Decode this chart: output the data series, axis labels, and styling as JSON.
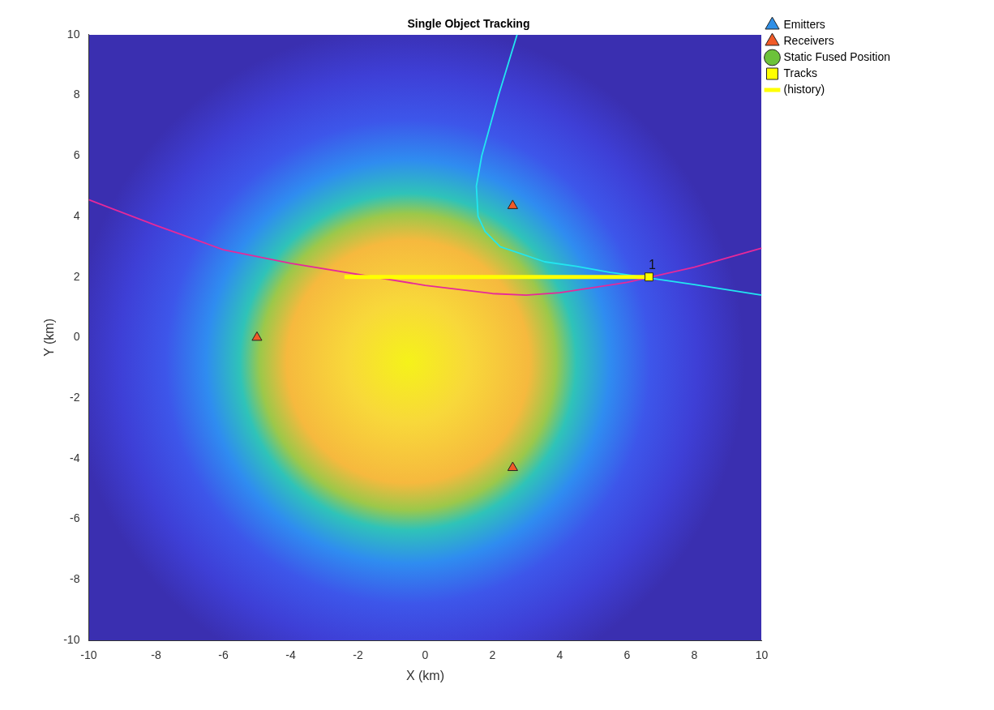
{
  "chart_data": {
    "type": "scatter",
    "title": "Single Object Tracking",
    "xlabel": "X (km)",
    "ylabel": "Y (km)",
    "xlim": [
      -10,
      10
    ],
    "ylim": [
      -10,
      10
    ],
    "xticks": [
      -10,
      -8,
      -6,
      -4,
      -2,
      0,
      2,
      4,
      6,
      8,
      10
    ],
    "yticks": [
      -10,
      -8,
      -6,
      -4,
      -2,
      0,
      2,
      4,
      6,
      8,
      10
    ],
    "grid": false,
    "legend": "top right",
    "series": [
      {
        "name": "Emitters",
        "type": "scatter",
        "marker": "triangle",
        "color": "#2f8fe6"
      },
      {
        "name": "Receivers",
        "type": "scatter",
        "marker": "triangle",
        "color": "#f05a28",
        "x": [
          -5,
          2.6,
          2.6
        ],
        "values": [
          0,
          4.35,
          -4.3
        ]
      },
      {
        "name": "Static Fused Position",
        "type": "scatter",
        "marker": "circle",
        "color": "#6cc23a"
      },
      {
        "name": "Tracks",
        "type": "scatter",
        "marker": "square",
        "color": "#ffff00",
        "x": [
          6.65
        ],
        "values": [
          2.0
        ]
      },
      {
        "name": "(history)",
        "type": "line",
        "marker": "none",
        "color": "#ffff00",
        "x": [
          -2.4,
          6.65
        ],
        "values": [
          2.0,
          2.0
        ]
      },
      {
        "type": "line",
        "marker": "none",
        "color": "#e6299a",
        "x": [
          -10,
          -8,
          -6,
          -4,
          0,
          2,
          3,
          4,
          6,
          8,
          10
        ],
        "values": [
          4.55,
          3.7,
          2.9,
          2.45,
          1.72,
          1.45,
          1.4,
          1.48,
          1.82,
          2.32,
          2.95
        ]
      },
      {
        "type": "line",
        "marker": "none",
        "color": "#22e6f0",
        "x": [
          2.73,
          2.18,
          1.68,
          1.52,
          1.57,
          1.78,
          2.23,
          3.55,
          4.5,
          5.5,
          8,
          10
        ],
        "values": [
          10,
          8,
          6,
          5,
          4,
          3.5,
          3,
          2.5,
          2.35,
          2.15,
          1.75,
          1.4
        ]
      }
    ],
    "annotations": [
      {
        "text": "1",
        "x": 6.65,
        "y": 2.0
      }
    ]
  }
}
